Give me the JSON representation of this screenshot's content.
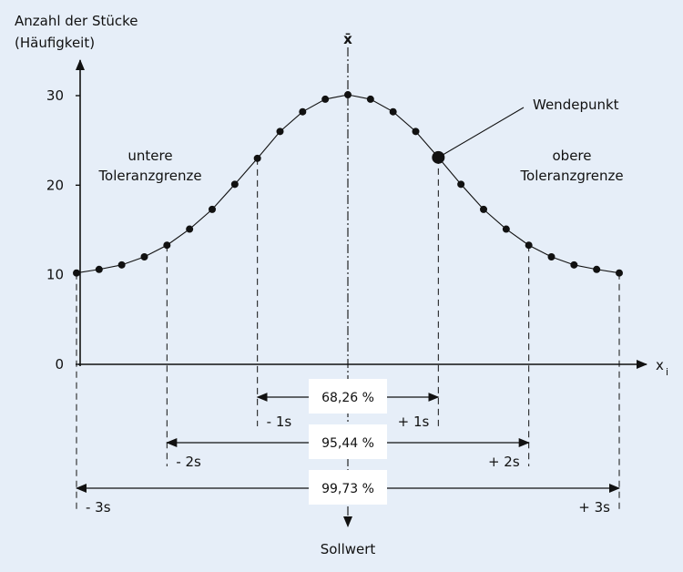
{
  "chart_data": {
    "type": "line",
    "title": "",
    "ylabel_line1": "Anzahl der Stücke",
    "ylabel_line2": "(Häufigkeit)",
    "xlabel": "x",
    "xlabel_sub": "i",
    "ylim": [
      0,
      30
    ],
    "yticks": [
      "0",
      "10",
      "20",
      "30"
    ],
    "ytick_values": [
      0,
      10,
      20,
      30
    ],
    "points_x": [
      -3,
      -2.75,
      -2.5,
      -2.25,
      -2,
      -1.75,
      -1.5,
      -1.25,
      -1,
      -0.75,
      -0.5,
      -0.25,
      0,
      0.25,
      0.5,
      0.75,
      1,
      1.25,
      1.5,
      1.75,
      2,
      2.25,
      2.5,
      2.75,
      3
    ],
    "points_y": [
      10.2,
      10.6,
      11.1,
      12.0,
      13.3,
      15.1,
      17.3,
      20.1,
      23.0,
      26.0,
      28.2,
      29.6,
      30.1,
      29.6,
      28.2,
      26.0,
      23.1,
      20.1,
      17.3,
      15.1,
      13.3,
      12.0,
      11.1,
      10.6,
      10.2
    ],
    "mean_label": "x̄",
    "center_label": "Sollwert",
    "inflection_label": "Wendepunkt",
    "inflection_x": 1,
    "left_tolerance": [
      "untere",
      "Toleranzgrenze"
    ],
    "right_tolerance": [
      "obere",
      "Toleranzgrenze"
    ],
    "intervals": [
      {
        "k": 1,
        "left": "- 1s",
        "right": "+ 1s",
        "percent": "68,26 %"
      },
      {
        "k": 2,
        "left": "- 2s",
        "right": "+ 2s",
        "percent": "95,44 %"
      },
      {
        "k": 3,
        "left": "- 3s",
        "right": "+ 3s",
        "percent": "99,73 %"
      }
    ],
    "colors": {
      "background": "#e6eef8",
      "ink": "#111111",
      "box": "#ffffff"
    }
  }
}
